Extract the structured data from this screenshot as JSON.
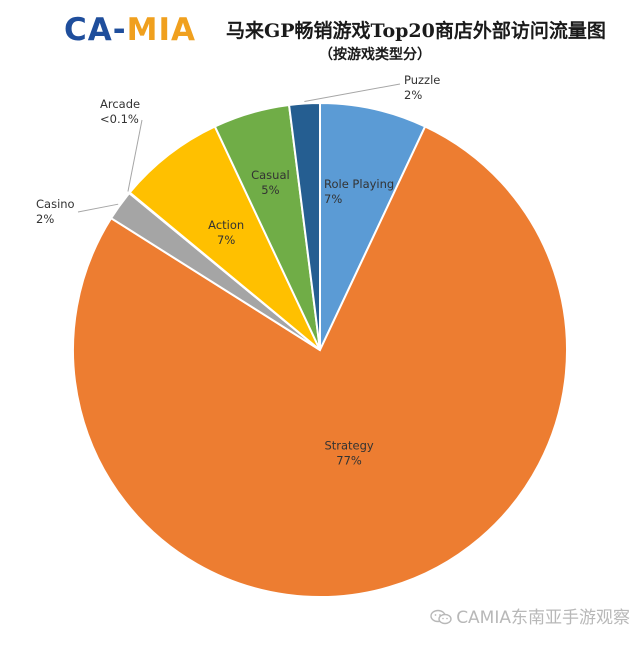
{
  "header": {
    "logo_text": "CA-MIA",
    "title": "马来GP畅销游戏Top20商店外部访问流量图",
    "subtitle": "（按游戏类型分）"
  },
  "watermark": {
    "text": "CAMIA东南亚手游观察",
    "icon": "wechat-icon"
  },
  "chart_data": {
    "type": "pie",
    "title": "马来GP畅销游戏Top20商店外部访问流量图",
    "subtitle": "（按游戏类型分）",
    "start_angle_deg": 0,
    "direction": "clockwise",
    "slices": [
      {
        "name": "Role Playing",
        "label": "7%",
        "value": 7,
        "color": "#5b9bd5"
      },
      {
        "name": "Strategy",
        "label": "77%",
        "value": 77,
        "color": "#ed7d31"
      },
      {
        "name": "Casino",
        "label": "2%",
        "value": 2,
        "color": "#a5a5a5"
      },
      {
        "name": "Arcade",
        "label": "<0.1%",
        "value": 0.05,
        "color": "#ffc000"
      },
      {
        "name": "Action",
        "label": "7%",
        "value": 7,
        "color": "#ffc000"
      },
      {
        "name": "Casual",
        "label": "5%",
        "value": 5,
        "color": "#70ad47"
      },
      {
        "name": "Puzzle",
        "label": "2%",
        "value": 2,
        "color": "#255e91"
      }
    ]
  }
}
